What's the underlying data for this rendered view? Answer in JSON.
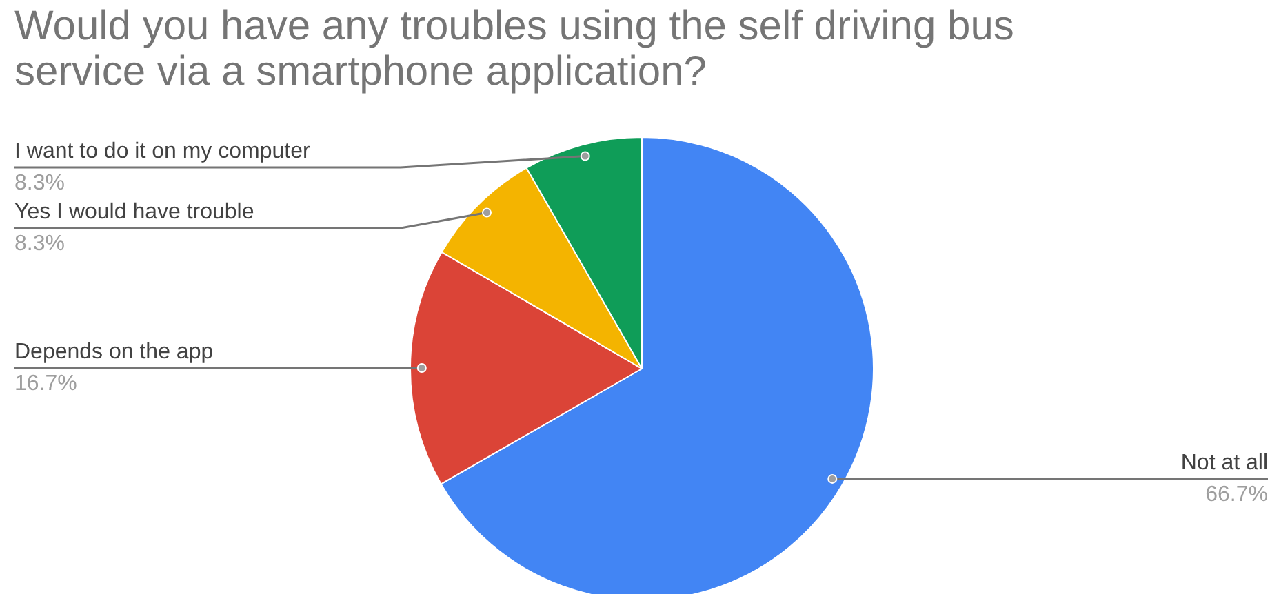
{
  "chart_data": {
    "type": "pie",
    "title": "Would you have any troubles using the self driving bus service via a smartphone application?",
    "categories": [
      "Not at all",
      "Depends on the app",
      "Yes I would have trouble",
      "I want to do it on my computer"
    ],
    "values": [
      66.7,
      16.7,
      8.3,
      8.3
    ],
    "colors": [
      "#4285f4",
      "#db4437",
      "#f4b400",
      "#0f9d58"
    ],
    "value_labels": [
      "66.7%",
      "16.7%",
      "8.3%",
      "8.3%"
    ]
  }
}
